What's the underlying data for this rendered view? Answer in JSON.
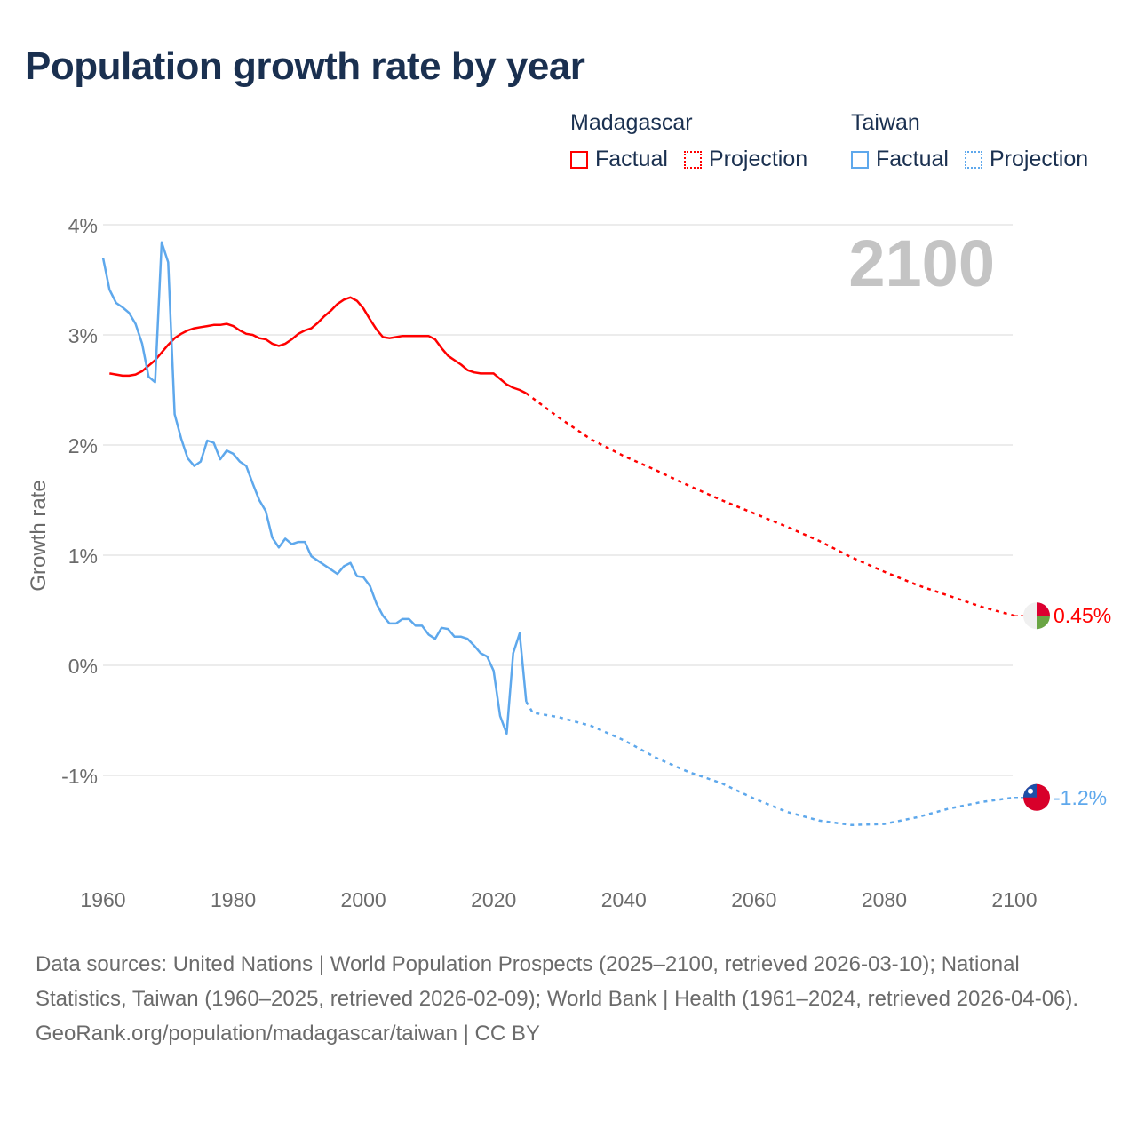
{
  "chart_data": {
    "type": "line",
    "title": "Population growth rate by year",
    "ylabel": "Growth rate",
    "xlabel": "",
    "xlim": [
      1960,
      2100
    ],
    "ylim": [
      -1.9,
      4
    ],
    "x_ticks": [
      1960,
      1980,
      2000,
      2020,
      2040,
      2060,
      2080,
      2100
    ],
    "x_tick_labels": [
      "1960",
      "1980",
      "2000",
      "2020",
      "2040",
      "2060",
      "2080",
      "2100"
    ],
    "y_ticks": [
      4,
      3,
      2,
      1,
      0,
      -1
    ],
    "y_tick_labels": [
      "4%",
      "3%",
      "2%",
      "1%",
      "0%",
      "-1%"
    ],
    "grid": true,
    "year_watermark": "2100",
    "legend": {
      "placement": "top-right",
      "groups": [
        {
          "name": "Madagascar",
          "factual": "Factual",
          "projection": "Projection",
          "color": "#ff0000"
        },
        {
          "name": "Taiwan",
          "factual": "Factual",
          "projection": "Projection",
          "color": "#5ea8ec"
        }
      ]
    },
    "series": [
      {
        "name": "Madagascar",
        "color": "#ff0000",
        "end_label": "0.45%",
        "factual": {
          "x": [
            1961,
            1962,
            1963,
            1964,
            1965,
            1966,
            1967,
            1968,
            1969,
            1970,
            1971,
            1972,
            1973,
            1974,
            1975,
            1976,
            1977,
            1978,
            1979,
            1980,
            1981,
            1982,
            1983,
            1984,
            1985,
            1986,
            1987,
            1988,
            1989,
            1990,
            1991,
            1992,
            1993,
            1994,
            1995,
            1996,
            1997,
            1998,
            1999,
            2000,
            2001,
            2002,
            2003,
            2004,
            2005,
            2006,
            2007,
            2008,
            2009,
            2010,
            2011,
            2012,
            2013,
            2014,
            2015,
            2016,
            2017,
            2018,
            2019,
            2020,
            2021,
            2022,
            2023,
            2024,
            2025
          ],
          "y": [
            2.65,
            2.64,
            2.63,
            2.63,
            2.64,
            2.67,
            2.72,
            2.77,
            2.84,
            2.91,
            2.97,
            3.01,
            3.04,
            3.06,
            3.07,
            3.08,
            3.09,
            3.09,
            3.1,
            3.08,
            3.04,
            3.01,
            3.0,
            2.97,
            2.96,
            2.92,
            2.9,
            2.92,
            2.96,
            3.01,
            3.04,
            3.06,
            3.11,
            3.17,
            3.22,
            3.28,
            3.32,
            3.34,
            3.31,
            3.24,
            3.14,
            3.05,
            2.98,
            2.97,
            2.98,
            2.99,
            2.99,
            2.99,
            2.99,
            2.99,
            2.96,
            2.88,
            2.81,
            2.77,
            2.73,
            2.68,
            2.66,
            2.65,
            2.65,
            2.65,
            2.6,
            2.55,
            2.52,
            2.5,
            2.47
          ]
        },
        "projection": {
          "x": [
            2025,
            2030,
            2035,
            2040,
            2045,
            2050,
            2055,
            2060,
            2065,
            2070,
            2075,
            2080,
            2085,
            2090,
            2095,
            2100
          ],
          "y": [
            2.47,
            2.25,
            2.05,
            1.9,
            1.77,
            1.63,
            1.5,
            1.38,
            1.26,
            1.13,
            0.98,
            0.85,
            0.73,
            0.63,
            0.53,
            0.45
          ]
        }
      },
      {
        "name": "Taiwan",
        "color": "#5ea8ec",
        "end_label": "-1.2%",
        "factual": {
          "x": [
            1960,
            1961,
            1962,
            1963,
            1964,
            1965,
            1966,
            1967,
            1968,
            1969,
            1970,
            1971,
            1972,
            1973,
            1974,
            1975,
            1976,
            1977,
            1978,
            1979,
            1980,
            1981,
            1982,
            1983,
            1984,
            1985,
            1986,
            1987,
            1988,
            1989,
            1990,
            1991,
            1992,
            1993,
            1994,
            1995,
            1996,
            1997,
            1998,
            1999,
            2000,
            2001,
            2002,
            2003,
            2004,
            2005,
            2006,
            2007,
            2008,
            2009,
            2010,
            2011,
            2012,
            2013,
            2014,
            2015,
            2016,
            2017,
            2018,
            2019,
            2020,
            2021,
            2022,
            2023,
            2024,
            2025
          ],
          "y": [
            3.7,
            3.41,
            3.29,
            3.25,
            3.2,
            3.1,
            2.92,
            2.62,
            2.57,
            3.84,
            3.66,
            2.28,
            2.06,
            1.88,
            1.81,
            1.85,
            2.04,
            2.02,
            1.87,
            1.95,
            1.92,
            1.85,
            1.81,
            1.65,
            1.5,
            1.4,
            1.16,
            1.07,
            1.15,
            1.1,
            1.12,
            1.12,
            0.99,
            0.95,
            0.91,
            0.87,
            0.83,
            0.9,
            0.93,
            0.81,
            0.8,
            0.72,
            0.56,
            0.45,
            0.38,
            0.38,
            0.42,
            0.42,
            0.36,
            0.36,
            0.28,
            0.24,
            0.34,
            0.33,
            0.26,
            0.26,
            0.24,
            0.18,
            0.11,
            0.08,
            -0.05,
            -0.46,
            -0.62,
            0.11,
            0.29,
            -0.33
          ]
        },
        "projection": {
          "x": [
            2025,
            2026,
            2030,
            2035,
            2040,
            2045,
            2050,
            2055,
            2060,
            2065,
            2070,
            2075,
            2080,
            2085,
            2090,
            2095,
            2100
          ],
          "y": [
            -0.33,
            -0.43,
            -0.47,
            -0.55,
            -0.68,
            -0.84,
            -0.97,
            -1.07,
            -1.21,
            -1.33,
            -1.41,
            -1.45,
            -1.44,
            -1.38,
            -1.3,
            -1.24,
            -1.2
          ]
        }
      }
    ],
    "footer": {
      "sources": "Data sources: United Nations | World Population Prospects (2025–2100, retrieved 2026-03-10); National Statistics, Taiwan (1960–2025, retrieved 2026-02-09); World Bank | Health (1961–2024, retrieved 2026-04-06).",
      "credit": "GeoRank.org/population/madagascar/taiwan | CC BY"
    }
  }
}
